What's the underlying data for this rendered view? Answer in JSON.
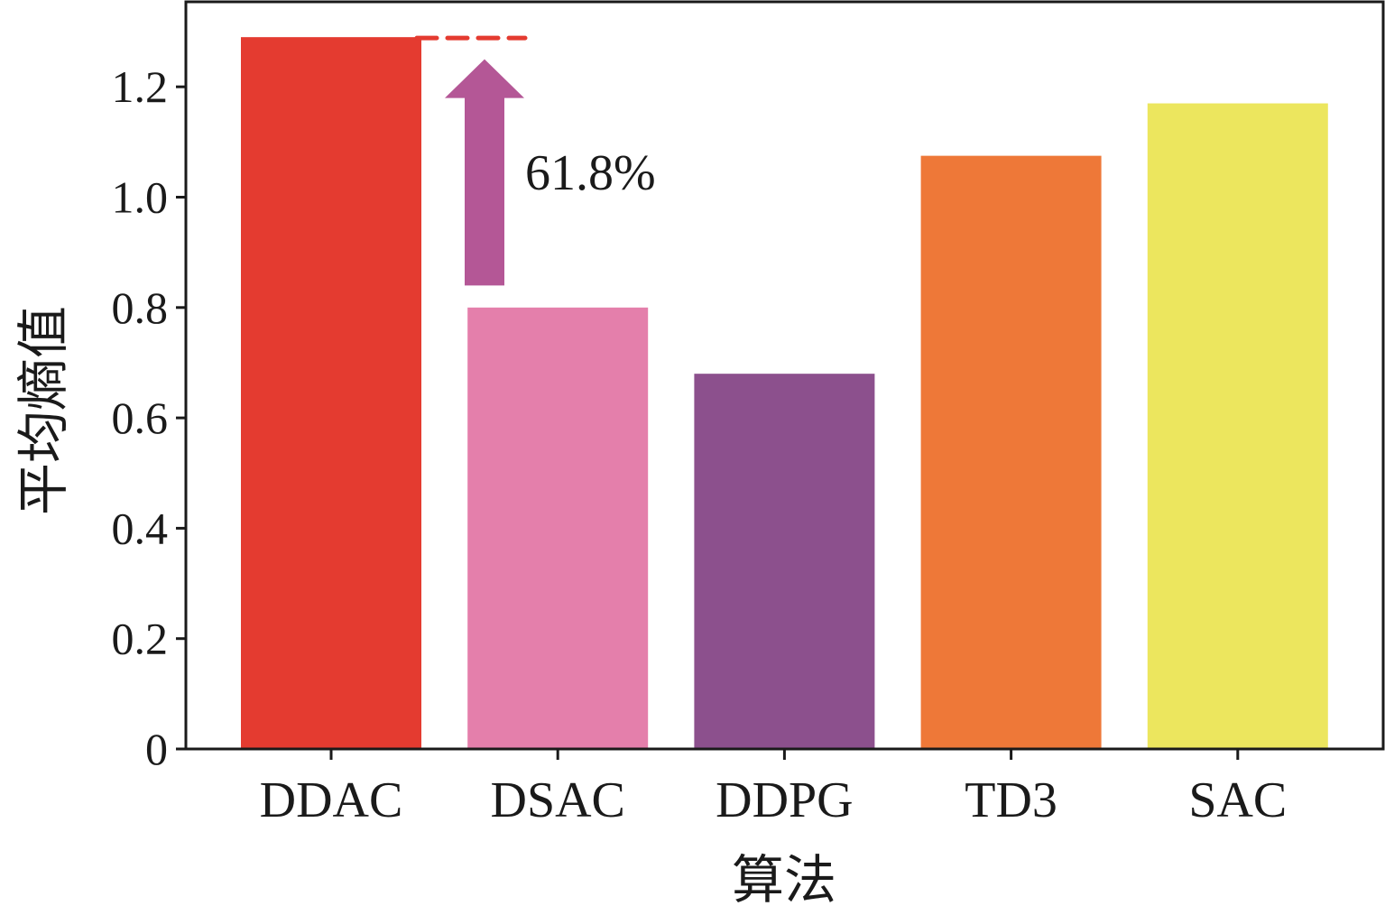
{
  "chart_data": {
    "type": "bar",
    "title": "",
    "xlabel": "算法",
    "ylabel": "平均熵值",
    "categories": [
      "DDAC",
      "DSAC",
      "DDPG",
      "TD3",
      "SAC"
    ],
    "values": [
      1.29,
      0.8,
      0.68,
      1.075,
      1.17
    ],
    "colors": [
      "#e43b30",
      "#e47fab",
      "#8c508d",
      "#ee7838",
      "#ece65e"
    ],
    "ylim": [
      0,
      1.3
    ],
    "yticks": [
      0,
      0.2,
      0.4,
      0.6,
      0.8,
      1.0,
      1.2
    ],
    "ytick_labels": [
      "0",
      "0.2",
      "0.4",
      "0.6",
      "0.8",
      "1.0",
      "1.2"
    ],
    "grid": false,
    "legend": null,
    "annotations": [
      {
        "type": "arrow",
        "direction": "up",
        "from_value": 0.84,
        "to_value": 1.25,
        "between": [
          "DDAC",
          "DSAC"
        ],
        "color": "#b45796",
        "text": "61.8%"
      },
      {
        "type": "dashed-reference-line",
        "value": 1.29,
        "color": "#e43b30",
        "between": [
          "DDAC",
          "DSAC"
        ]
      }
    ]
  }
}
